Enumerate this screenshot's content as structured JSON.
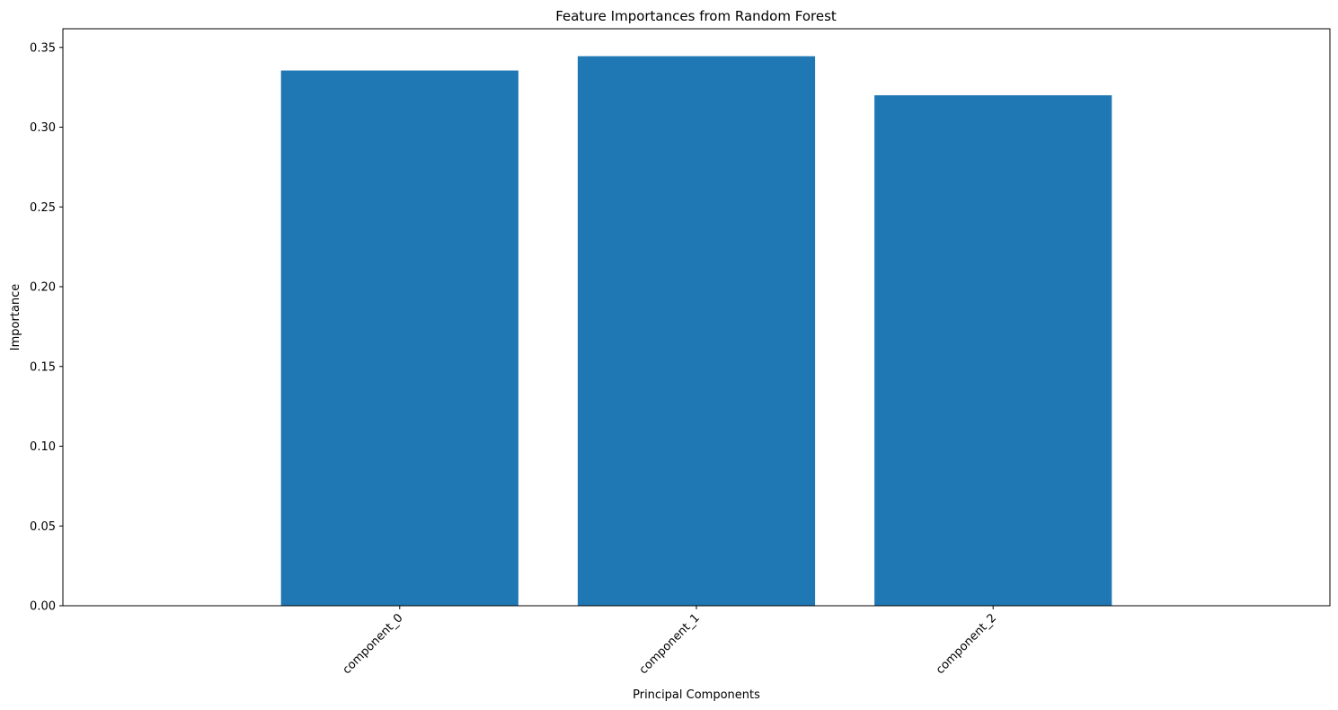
{
  "chart_data": {
    "type": "bar",
    "title": "Feature Importances from Random Forest",
    "xlabel": "Principal Components",
    "ylabel": "Importance",
    "categories": [
      "component_0",
      "component_1",
      "component_2"
    ],
    "values": [
      0.3355,
      0.3445,
      0.32
    ],
    "ylim": [
      0,
      0.3617
    ],
    "yticks": [
      0.0,
      0.05,
      0.1,
      0.15,
      0.2,
      0.25,
      0.3,
      0.35
    ],
    "ytick_labels": [
      "0.00",
      "0.05",
      "0.10",
      "0.15",
      "0.20",
      "0.25",
      "0.30",
      "0.35"
    ],
    "xtick_rotation": 45,
    "grid": false,
    "legend": "none",
    "bar_color": "#1f77b4"
  }
}
